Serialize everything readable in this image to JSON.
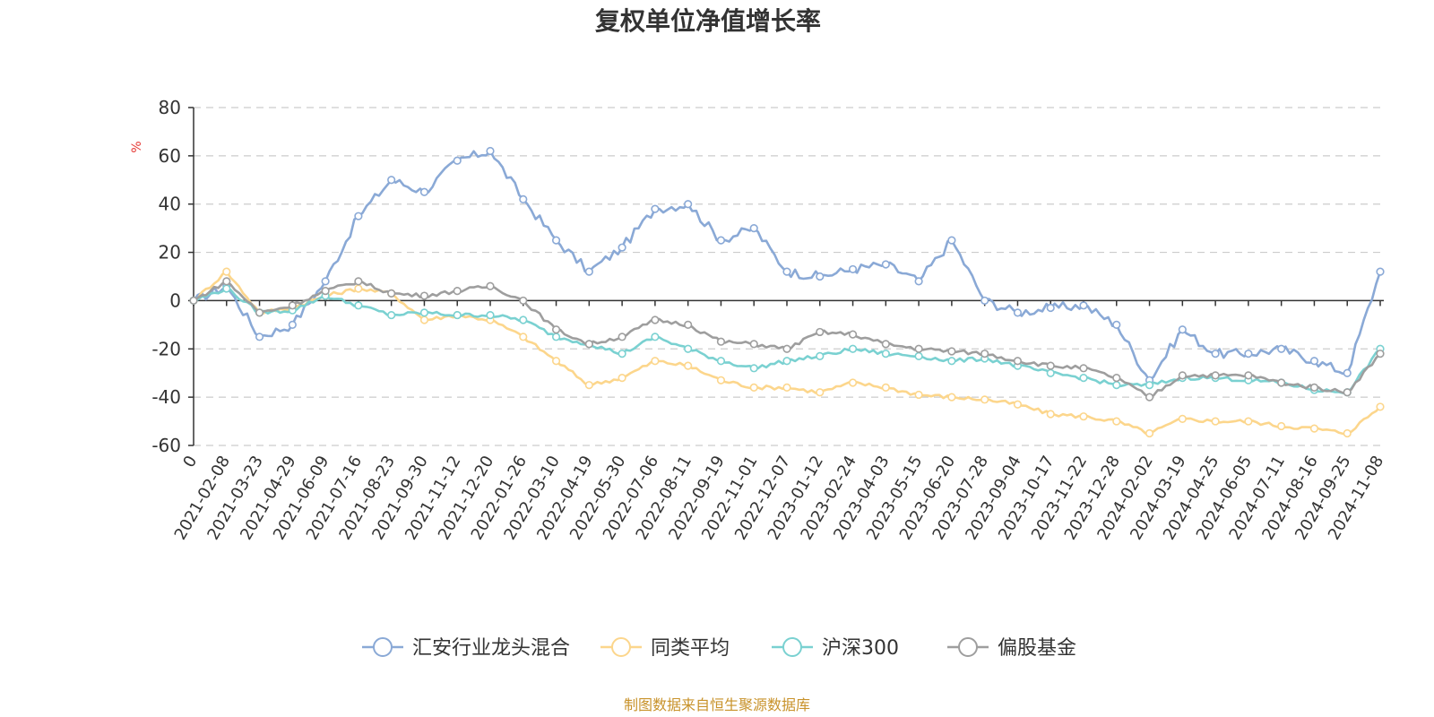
{
  "chart_data": {
    "type": "line",
    "title": "复权单位净值增长率",
    "ylabel": "%",
    "ylim": [
      -60,
      80
    ],
    "yticks": [
      -60,
      -40,
      -20,
      0,
      20,
      40,
      60,
      80
    ],
    "grid": true,
    "legend_position": "bottom-center",
    "categories": [
      "0",
      "2021-02-08",
      "2021-03-23",
      "2021-04-29",
      "2021-06-09",
      "2021-07-16",
      "2021-08-23",
      "2021-09-30",
      "2021-11-12",
      "2021-12-20",
      "2022-01-26",
      "2022-03-10",
      "2022-04-19",
      "2022-05-30",
      "2022-07-06",
      "2022-08-11",
      "2022-09-19",
      "2022-11-01",
      "2022-12-07",
      "2023-01-12",
      "2023-02-24",
      "2023-04-03",
      "2023-05-15",
      "2023-06-20",
      "2023-07-28",
      "2023-09-04",
      "2023-10-17",
      "2023-11-22",
      "2023-12-28",
      "2024-02-02",
      "2024-03-19",
      "2024-04-25",
      "2024-06-05",
      "2024-07-11",
      "2024-08-16",
      "2024-09-25",
      "2024-11-08"
    ],
    "series": [
      {
        "name": "汇安行业龙头混合",
        "color": "#8aa9d6",
        "values": [
          0,
          6,
          -15,
          -10,
          8,
          35,
          50,
          45,
          58,
          62,
          42,
          25,
          12,
          22,
          38,
          40,
          25,
          30,
          12,
          10,
          13,
          15,
          8,
          25,
          0,
          -5,
          -3,
          -2,
          -10,
          -33,
          -12,
          -22,
          -22,
          -20,
          -25,
          -30,
          12
        ]
      },
      {
        "name": "同类平均",
        "color": "#fcd68c",
        "values": [
          0,
          12,
          -5,
          -3,
          2,
          5,
          3,
          -8,
          -6,
          -8,
          -15,
          -25,
          -35,
          -32,
          -25,
          -27,
          -33,
          -36,
          -36,
          -38,
          -34,
          -36,
          -39,
          -40,
          -41,
          -43,
          -47,
          -48,
          -50,
          -55,
          -49,
          -50,
          -50,
          -52,
          -53,
          -55,
          -44
        ]
      },
      {
        "name": "沪深300",
        "color": "#7ad1d1",
        "values": [
          0,
          5,
          -5,
          -4,
          2,
          -2,
          -6,
          -5,
          -6,
          -6,
          -8,
          -15,
          -18,
          -22,
          -15,
          -20,
          -25,
          -28,
          -25,
          -23,
          -20,
          -22,
          -23,
          -25,
          -24,
          -27,
          -30,
          -32,
          -35,
          -35,
          -32,
          -32,
          -33,
          -34,
          -37,
          -38,
          -20
        ]
      },
      {
        "name": "偏股基金",
        "color": "#9e9e9e",
        "values": [
          0,
          8,
          -5,
          -2,
          4,
          8,
          3,
          2,
          4,
          6,
          0,
          -12,
          -18,
          -15,
          -8,
          -10,
          -17,
          -18,
          -20,
          -13,
          -14,
          -18,
          -20,
          -21,
          -22,
          -25,
          -27,
          -28,
          -32,
          -40,
          -31,
          -31,
          -31,
          -34,
          -36,
          -38,
          -22
        ]
      }
    ]
  },
  "source_note": "制图数据来自恒生聚源数据库"
}
